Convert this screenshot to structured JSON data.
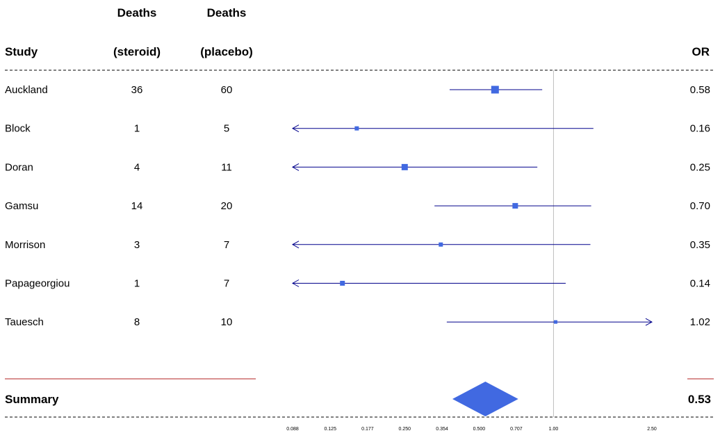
{
  "header": {
    "study_label": "Study",
    "steroid_line1": "Deaths",
    "steroid_line2": "(steroid)",
    "placebo_line1": "Deaths",
    "placebo_line2": "(placebo)",
    "or_label": "OR"
  },
  "chart_data": {
    "type": "forest",
    "xscale": "log",
    "xlim": [
      0.088,
      2.5
    ],
    "reference_line": 1.0,
    "xticks": [
      "0.088",
      "0.125",
      "0.177",
      "0.250",
      "0.354",
      "0.500",
      "0.707",
      "1.00",
      "2.50"
    ],
    "studies": [
      {
        "name": "Auckland",
        "deaths_steroid": "36",
        "deaths_placebo": "60",
        "or": 0.58,
        "or_label": "0.58",
        "lower": 0.38,
        "upper": 0.9
      },
      {
        "name": "Block",
        "deaths_steroid": "1",
        "deaths_placebo": "5",
        "or": 0.16,
        "or_label": "0.16",
        "lower": 0.088,
        "upper": 1.45
      },
      {
        "name": "Doran",
        "deaths_steroid": "4",
        "deaths_placebo": "11",
        "or": 0.25,
        "or_label": "0.25",
        "lower": 0.088,
        "upper": 0.86
      },
      {
        "name": "Gamsu",
        "deaths_steroid": "14",
        "deaths_placebo": "20",
        "or": 0.7,
        "or_label": "0.70",
        "lower": 0.33,
        "upper": 1.42
      },
      {
        "name": "Morrison",
        "deaths_steroid": "3",
        "deaths_placebo": "7",
        "or": 0.35,
        "or_label": "0.35",
        "lower": 0.088,
        "upper": 1.41
      },
      {
        "name": "Papageorgiou",
        "deaths_steroid": "1",
        "deaths_placebo": "7",
        "or": 0.14,
        "or_label": "0.14",
        "lower": 0.088,
        "upper": 1.12
      },
      {
        "name": "Tauesch",
        "deaths_steroid": "8",
        "deaths_placebo": "10",
        "or": 1.02,
        "or_label": "1.02",
        "lower": 0.37,
        "upper": 2.5
      }
    ],
    "summary": {
      "name": "Summary",
      "or": 0.53,
      "or_label": "0.53",
      "lower": 0.39,
      "upper": 0.72
    },
    "colors": {
      "marker": "#4169E1",
      "ci_line": "#00008B",
      "summary_line": "#B22222",
      "reference": "#BEBEBE"
    }
  }
}
